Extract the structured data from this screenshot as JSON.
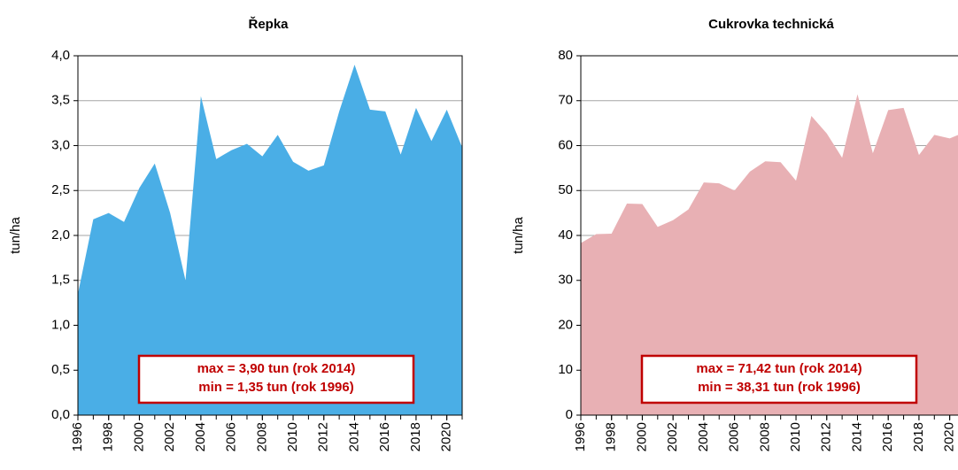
{
  "chart_data": [
    {
      "type": "area",
      "title": "Řepka",
      "ylabel": "tun/ha",
      "color": "#4aaee6",
      "grid": true,
      "x": [
        1996,
        1997,
        1998,
        1999,
        2000,
        2001,
        2002,
        2003,
        2004,
        2005,
        2006,
        2007,
        2008,
        2009,
        2010,
        2011,
        2012,
        2013,
        2014,
        2015,
        2016,
        2017,
        2018,
        2019,
        2020,
        2021
      ],
      "values": [
        1.35,
        2.18,
        2.25,
        2.15,
        2.53,
        2.8,
        2.25,
        1.5,
        3.55,
        2.85,
        2.95,
        3.02,
        2.88,
        3.12,
        2.82,
        2.72,
        2.78,
        3.38,
        3.9,
        3.4,
        3.38,
        2.9,
        3.42,
        3.05,
        3.4,
        2.98
      ],
      "xlim": [
        1996,
        2021
      ],
      "xticks": [
        1996,
        1998,
        2000,
        2002,
        2004,
        2006,
        2008,
        2010,
        2012,
        2014,
        2016,
        2018,
        2020
      ],
      "ylim": [
        0,
        4
      ],
      "yticks": [
        {
          "value": 0,
          "label": "0,0"
        },
        {
          "value": 0.5,
          "label": "0,5"
        },
        {
          "value": 1,
          "label": "1,0"
        },
        {
          "value": 1.5,
          "label": "1,5"
        },
        {
          "value": 2,
          "label": "2,0"
        },
        {
          "value": 2.5,
          "label": "2,5"
        },
        {
          "value": 3,
          "label": "3,0"
        },
        {
          "value": 3.5,
          "label": "3,5"
        },
        {
          "value": 4,
          "label": "4,0"
        }
      ],
      "annotations": [
        "max =  3,90 tun (rok 2014)",
        "min =  1,35 tun (rok 1996)"
      ]
    },
    {
      "type": "area",
      "title": "Cukrovka technická",
      "ylabel": "tun/ha",
      "color": "#e8b0b4",
      "grid": true,
      "x": [
        1996,
        1997,
        1998,
        1999,
        2000,
        2001,
        2002,
        2003,
        2004,
        2005,
        2006,
        2007,
        2008,
        2009,
        2010,
        2011,
        2012,
        2013,
        2014,
        2015,
        2016,
        2017,
        2018,
        2019,
        2020,
        2021
      ],
      "values": [
        38.31,
        40.3,
        40.4,
        47.1,
        47.0,
        41.9,
        43.4,
        45.8,
        51.8,
        51.6,
        50.0,
        54.2,
        56.5,
        56.3,
        52.2,
        66.6,
        62.7,
        57.3,
        71.42,
        58.3,
        67.9,
        68.4,
        57.9,
        62.4,
        61.6,
        63.0
      ],
      "xlim": [
        1996,
        2021
      ],
      "xticks": [
        1996,
        1998,
        2000,
        2002,
        2004,
        2006,
        2008,
        2010,
        2012,
        2014,
        2016,
        2018,
        2020
      ],
      "ylim": [
        0,
        80
      ],
      "yticks": [
        0,
        10,
        20,
        30,
        40,
        50,
        60,
        70,
        80
      ],
      "annotations": [
        "max =  71,42 tun (rok 2014)",
        "min =  38,31 tun (rok 1996)"
      ]
    }
  ]
}
